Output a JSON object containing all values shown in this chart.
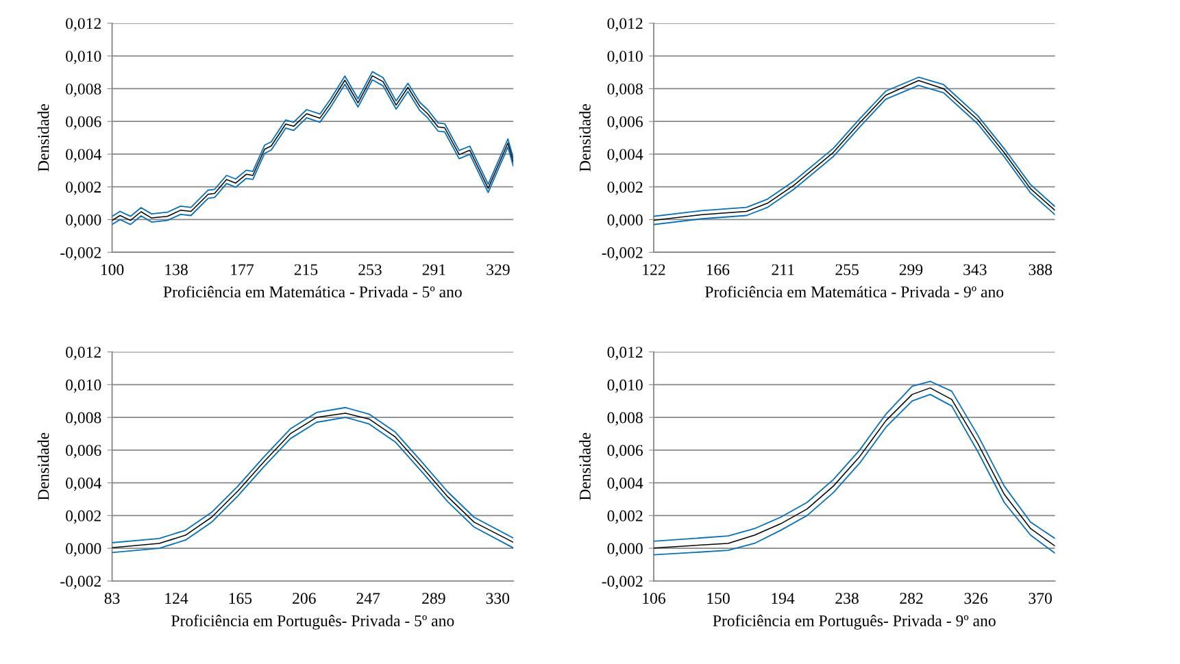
{
  "chart_data": [
    {
      "type": "line",
      "xlabel": "Proficiência em Matemática - Privada - 5º ano",
      "ylabel": "Densidade",
      "xlim": [
        100,
        338
      ],
      "xticks": [
        100,
        138,
        177,
        215,
        253,
        291,
        329
      ],
      "ylim": [
        -0.002,
        0.012
      ],
      "yticks": [
        {
          "value": -0.002,
          "label": "-0,002"
        },
        {
          "value": 0,
          "label": "0,000"
        },
        {
          "value": 0.002,
          "label": "0,002"
        },
        {
          "value": 0.004,
          "label": "0,004"
        },
        {
          "value": 0.006,
          "label": "0,006"
        },
        {
          "value": 0.008,
          "label": "0,008"
        },
        {
          "value": 0.01,
          "label": "0,010"
        },
        {
          "value": 0.012,
          "label": "0,012"
        }
      ],
      "grid": "y",
      "marker": "none",
      "line_style": "solid",
      "series": [
        {
          "color": "#0070c0",
          "x": [
            100,
            104.7,
            110.9,
            117.2,
            123.4,
            132.8,
            140.6,
            146.8,
            157,
            160.8,
            167.9,
            173.3,
            179.6,
            183.5,
            190.5,
            194.4,
            203,
            207.7,
            215.4,
            223.3,
            229.5,
            238.1,
            245.9,
            254.4,
            260.7,
            268.5,
            275.5,
            282.5,
            287.2,
            293.4,
            297.3,
            305.9,
            312.2,
            323.1,
            334.8,
            338
          ],
          "values": [
            0.0002,
            0.0005,
            0.0002,
            0.00073,
            0.00035,
            0.00045,
            0.00082,
            0.00075,
            0.0018,
            0.00185,
            0.0027,
            0.00248,
            0.00302,
            0.00295,
            0.00455,
            0.00475,
            0.00609,
            0.00595,
            0.00672,
            0.00645,
            0.00735,
            0.00877,
            0.00738,
            0.00904,
            0.00868,
            0.00725,
            0.00833,
            0.00717,
            0.00672,
            0.00591,
            0.00586,
            0.00422,
            0.00449,
            0.00216,
            0.00493,
            0.00377
          ]
        },
        {
          "color": "#000000",
          "x": [
            100,
            104.7,
            110.9,
            117.2,
            123.4,
            132.8,
            140.6,
            146.8,
            157,
            160.8,
            167.9,
            173.3,
            179.6,
            183.5,
            190.5,
            194.4,
            203,
            207.7,
            215.4,
            223.3,
            229.5,
            238.1,
            245.9,
            254.4,
            260.7,
            268.5,
            275.5,
            282.5,
            287.2,
            293.4,
            297.3,
            305.9,
            312.2,
            323.1,
            334.8,
            338
          ],
          "values": [
            -5e-05,
            0.00025,
            -5e-05,
            0.00048,
            0.0001,
            0.0002,
            0.00057,
            0.0005,
            0.00155,
            0.0016,
            0.00245,
            0.00223,
            0.00277,
            0.0027,
            0.0043,
            0.0045,
            0.00584,
            0.0057,
            0.00647,
            0.0062,
            0.0071,
            0.00852,
            0.00713,
            0.00879,
            0.00843,
            0.007,
            0.00808,
            0.00692,
            0.00647,
            0.00566,
            0.00561,
            0.00397,
            0.00424,
            0.00191,
            0.00468,
            0.00352
          ]
        },
        {
          "color": "#0070c0",
          "x": [
            100,
            104.7,
            110.9,
            117.2,
            123.4,
            132.8,
            140.6,
            146.8,
            157,
            160.8,
            167.9,
            173.3,
            179.6,
            183.5,
            190.5,
            194.4,
            203,
            207.7,
            215.4,
            223.3,
            229.5,
            238.1,
            245.9,
            254.4,
            260.7,
            268.5,
            275.5,
            282.5,
            287.2,
            293.4,
            297.3,
            305.9,
            312.2,
            323.1,
            334.8,
            338
          ],
          "values": [
            -0.0003,
            0.0,
            -0.0003,
            0.00023,
            -0.00015,
            -5e-05,
            0.00032,
            0.00025,
            0.0013,
            0.00135,
            0.0022,
            0.00198,
            0.00252,
            0.00245,
            0.00405,
            0.00425,
            0.00559,
            0.00545,
            0.00622,
            0.00595,
            0.00685,
            0.00827,
            0.00688,
            0.00854,
            0.00818,
            0.00675,
            0.00783,
            0.00667,
            0.00622,
            0.00541,
            0.00536,
            0.00372,
            0.00399,
            0.00166,
            0.00443,
            0.00327
          ]
        }
      ]
    },
    {
      "type": "line",
      "xlabel": "Proficiência em Matemática - Privada - 9º ano",
      "ylabel": "Densidade",
      "xlim": [
        122,
        398
      ],
      "xticks": [
        122,
        166,
        211,
        255,
        299,
        343,
        388
      ],
      "ylim": [
        -0.002,
        0.012
      ],
      "yticks": [
        {
          "value": -0.002,
          "label": "-0,002"
        },
        {
          "value": 0,
          "label": "0,000"
        },
        {
          "value": 0.002,
          "label": "0,002"
        },
        {
          "value": 0.004,
          "label": "0,004"
        },
        {
          "value": 0.006,
          "label": "0,006"
        },
        {
          "value": 0.008,
          "label": "0,008"
        },
        {
          "value": 0.01,
          "label": "0,010"
        },
        {
          "value": 0.012,
          "label": "0,012"
        }
      ],
      "grid": "y",
      "marker": "none",
      "line_style": "solid",
      "series": [
        {
          "color": "#0070c0",
          "x": [
            122,
            155.1,
            185.8,
            200.3,
            218.4,
            245.5,
            263.6,
            281.6,
            304.2,
            321.4,
            344.9,
            363,
            381.1,
            398
          ],
          "values": [
            0.0002,
            0.00055,
            0.00075,
            0.00125,
            0.00235,
            0.00435,
            0.00615,
            0.00785,
            0.0087,
            0.00825,
            0.00635,
            0.00435,
            0.00215,
            0.0008
          ]
        },
        {
          "color": "#000000",
          "x": [
            122,
            155.1,
            185.8,
            200.3,
            218.4,
            245.5,
            263.6,
            281.6,
            304.2,
            321.4,
            344.9,
            363,
            381.1,
            398
          ],
          "values": [
            -4e-05,
            0.0003,
            0.0005,
            0.001,
            0.0021,
            0.0041,
            0.0059,
            0.0076,
            0.0085,
            0.008,
            0.0061,
            0.0041,
            0.0019,
            0.00057
          ]
        },
        {
          "color": "#0070c0",
          "x": [
            122,
            155.1,
            185.8,
            200.3,
            218.4,
            245.5,
            263.6,
            281.6,
            304.2,
            321.4,
            344.9,
            363,
            381.1,
            398
          ],
          "values": [
            -0.0003,
            5e-05,
            0.00025,
            0.00075,
            0.00185,
            0.00385,
            0.00565,
            0.00735,
            0.0082,
            0.00775,
            0.00585,
            0.00385,
            0.00165,
            0.0003
          ]
        }
      ]
    },
    {
      "type": "line",
      "xlabel": "Proficiência em Português- Privada - 5º ano",
      "ylabel": "Densidade",
      "xlim": [
        83,
        340
      ],
      "xticks": [
        83,
        124,
        165,
        206,
        247,
        289,
        330
      ],
      "ylim": [
        -0.002,
        0.012
      ],
      "yticks": [
        {
          "value": -0.002,
          "label": "-0,002"
        },
        {
          "value": 0,
          "label": "0,000"
        },
        {
          "value": 0.002,
          "label": "0,002"
        },
        {
          "value": 0.004,
          "label": "0,004"
        },
        {
          "value": 0.006,
          "label": "0,006"
        },
        {
          "value": 0.008,
          "label": "0,008"
        },
        {
          "value": 0.01,
          "label": "0,010"
        },
        {
          "value": 0.012,
          "label": "0,012"
        }
      ],
      "grid": "y",
      "marker": "none",
      "line_style": "solid",
      "series": [
        {
          "color": "#0070c0",
          "x": [
            83,
            113.2,
            130,
            146.8,
            163.6,
            180.4,
            197.2,
            214,
            232.5,
            247.6,
            264.4,
            281.2,
            298,
            314.8,
            339.7
          ],
          "values": [
            0.00034,
            0.0006,
            0.0011,
            0.0022,
            0.0038,
            0.0056,
            0.0073,
            0.0083,
            0.0086,
            0.0082,
            0.0071,
            0.0053,
            0.00345,
            0.0019,
            0.00064
          ]
        },
        {
          "color": "#000000",
          "x": [
            83,
            113.2,
            130,
            146.8,
            163.6,
            180.4,
            197.2,
            214,
            232.5,
            247.6,
            264.4,
            281.2,
            298,
            314.8,
            339.7
          ],
          "values": [
            4e-05,
            0.0003,
            0.0008,
            0.0019,
            0.0035,
            0.0053,
            0.007,
            0.008,
            0.00825,
            0.0079,
            0.0068,
            0.005,
            0.00315,
            0.0016,
            0.00038
          ]
        },
        {
          "color": "#0070c0",
          "x": [
            83,
            113.2,
            130,
            146.8,
            163.6,
            180.4,
            197.2,
            214,
            232.5,
            247.6,
            264.4,
            281.2,
            298,
            314.8,
            339.7
          ],
          "values": [
            -0.00026,
            0.0,
            0.0005,
            0.0016,
            0.0032,
            0.005,
            0.0067,
            0.0077,
            0.008,
            0.0076,
            0.0065,
            0.0047,
            0.00285,
            0.0013,
            4e-05
          ]
        }
      ]
    },
    {
      "type": "line",
      "xlabel": "Proficiência em Português- Privada - 9º ano",
      "ylabel": "Densidade",
      "xlim": [
        106,
        380
      ],
      "xticks": [
        106,
        150,
        194,
        238,
        282,
        326,
        370
      ],
      "ylim": [
        -0.002,
        0.012
      ],
      "yticks": [
        {
          "value": -0.002,
          "label": "-0,002"
        },
        {
          "value": 0,
          "label": "0,000"
        },
        {
          "value": 0.002,
          "label": "0,002"
        },
        {
          "value": 0.004,
          "label": "0,004"
        },
        {
          "value": 0.006,
          "label": "0,006"
        },
        {
          "value": 0.008,
          "label": "0,008"
        },
        {
          "value": 0.01,
          "label": "0,010"
        },
        {
          "value": 0.012,
          "label": "0,012"
        }
      ],
      "grid": "y",
      "marker": "none",
      "line_style": "solid",
      "series": [
        {
          "color": "#0070c0",
          "x": [
            106,
            156.8,
            174.8,
            192.7,
            210.7,
            228.7,
            246.6,
            264.6,
            282.5,
            294.8,
            309.5,
            327.4,
            345.4,
            363.4,
            380
          ],
          "values": [
            0.00043,
            0.00075,
            0.0012,
            0.0019,
            0.0028,
            0.0042,
            0.006,
            0.0082,
            0.0099,
            0.0102,
            0.0096,
            0.0069,
            0.0038,
            0.0016,
            0.0006
          ]
        },
        {
          "color": "#000000",
          "x": [
            106,
            156.8,
            174.8,
            192.7,
            210.7,
            228.7,
            246.6,
            264.6,
            282.5,
            294.8,
            309.5,
            327.4,
            345.4,
            363.4,
            380
          ],
          "values": [
            2e-05,
            0.0003,
            0.0008,
            0.0015,
            0.0024,
            0.0038,
            0.0056,
            0.0078,
            0.0094,
            0.0098,
            0.0091,
            0.0064,
            0.0033,
            0.0012,
            0.00014
          ]
        },
        {
          "color": "#0070c0",
          "x": [
            106,
            156.8,
            174.8,
            192.7,
            210.7,
            228.7,
            246.6,
            264.6,
            282.5,
            294.8,
            309.5,
            327.4,
            345.4,
            363.4,
            380
          ],
          "values": [
            -0.0004,
            -0.00013,
            0.0003,
            0.0011,
            0.002,
            0.0034,
            0.0052,
            0.0074,
            0.009,
            0.0094,
            0.0087,
            0.0059,
            0.0028,
            0.0008,
            -0.0003
          ]
        }
      ]
    }
  ]
}
